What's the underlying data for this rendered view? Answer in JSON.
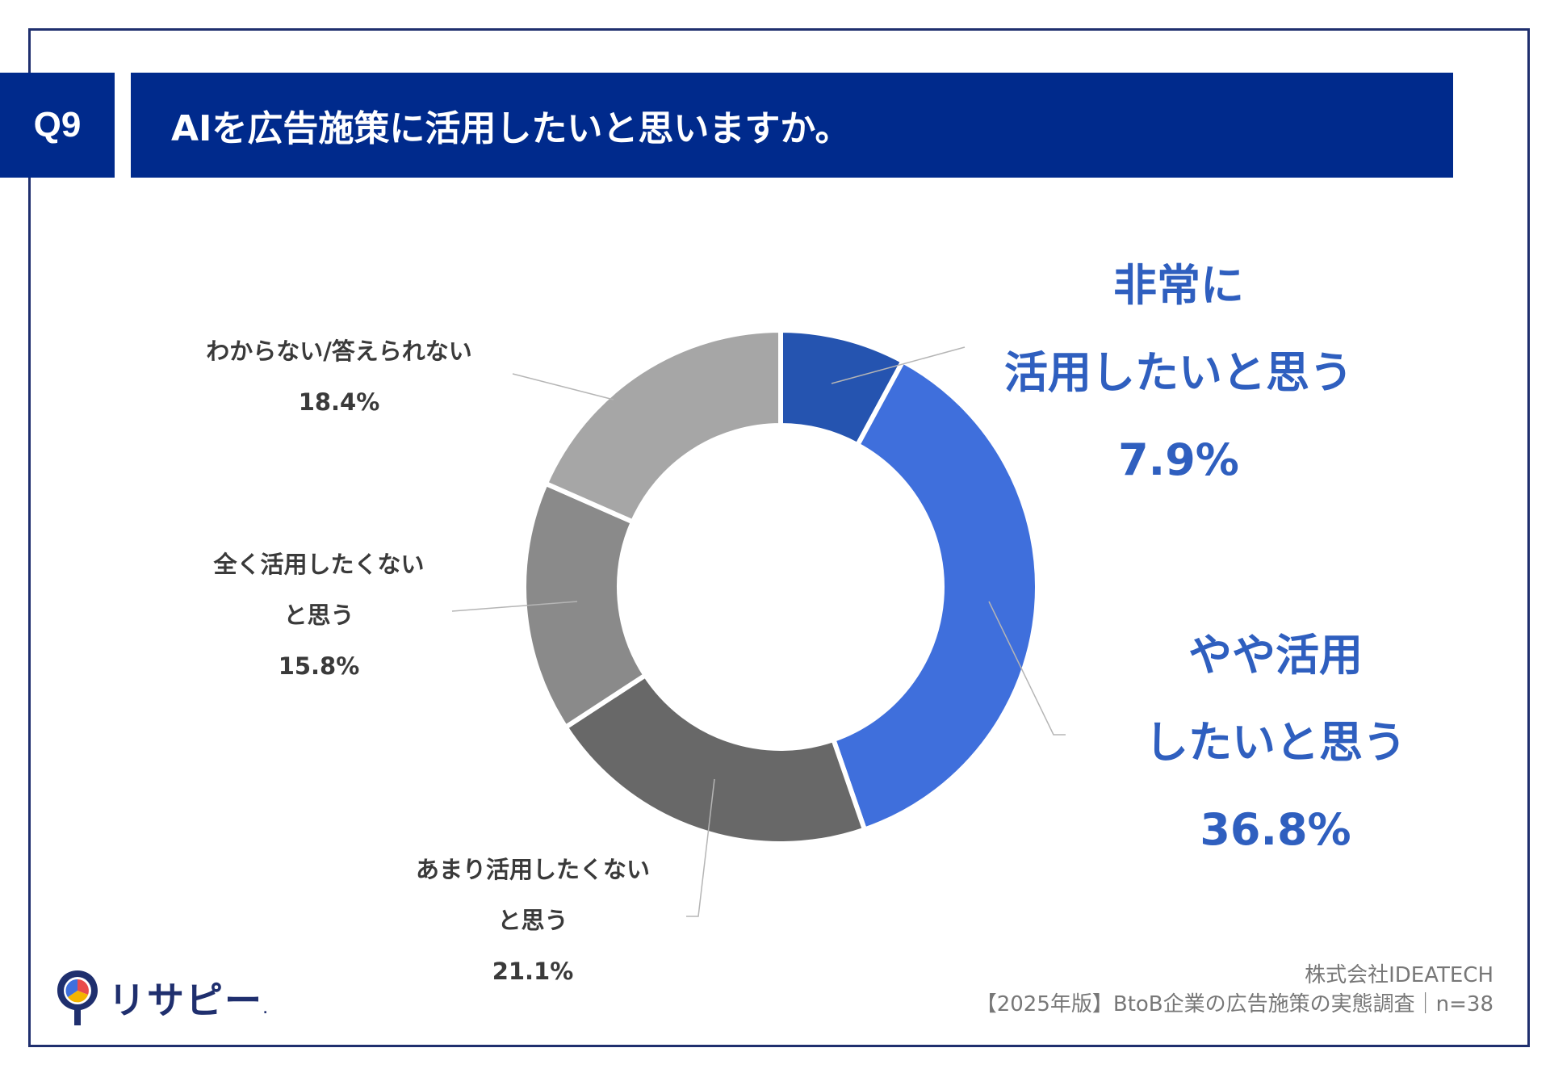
{
  "question": {
    "number": "Q9",
    "title": "AIを広告施策に活用したいと思いますか。"
  },
  "chart_data": {
    "type": "pie",
    "donut": true,
    "slices": [
      {
        "label": "非常に活用したいと思う",
        "value": 7.9,
        "pct": "7.9%",
        "color": "#2554b0"
      },
      {
        "label": "やや活用したいと思う",
        "value": 36.8,
        "pct": "36.8%",
        "color": "#3f6fdc"
      },
      {
        "label": "あまり活用したくないと思う",
        "value": 21.1,
        "pct": "21.1%",
        "color": "#686868"
      },
      {
        "label": "全く活用したくないと思う",
        "value": 15.8,
        "pct": "15.8%",
        "color": "#8a8a8a"
      },
      {
        "label": "わからない/答えられない",
        "value": 18.4,
        "pct": "18.4%",
        "color": "#a6a6a6"
      }
    ]
  },
  "labels": {
    "very": {
      "line1": "非常に",
      "line2": "活用したいと思う",
      "pct": "7.9%"
    },
    "somewhat": {
      "line1": "やや活用",
      "line2": "したいと思う",
      "pct": "36.8%"
    },
    "notmuch": {
      "line1": "あまり活用したくない",
      "line2": "と思う",
      "pct": "21.1%"
    },
    "notatall": {
      "line1": "全く活用したくない",
      "line2": "と思う",
      "pct": "15.8%"
    },
    "unknown": {
      "line1": "わからない/答えられない",
      "pct": "18.4%"
    }
  },
  "source": {
    "company": "株式会社IDEATECH",
    "survey": "【2025年版】BtoB企業の広告施策の実態調査｜n=38"
  },
  "logo": {
    "text": "リサピー"
  }
}
